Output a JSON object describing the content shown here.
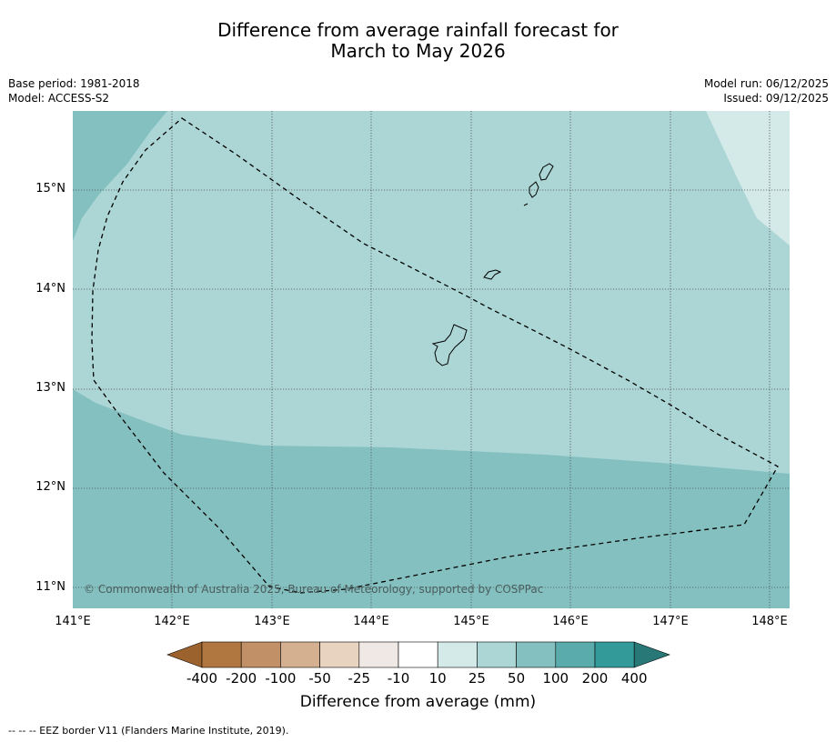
{
  "title_line1": "Difference from average rainfall forecast for",
  "title_line2": "March to May 2026",
  "base_period": "Base period: 1981-2018",
  "model": "Model: ACCESS-S2",
  "model_run": "Model run: 06/12/2025",
  "issued": "Issued: 09/12/2025",
  "lat_ticks": [
    "15°N",
    "14°N",
    "13°N",
    "12°N",
    "11°N"
  ],
  "lon_ticks": [
    "141°E",
    "142°E",
    "143°E",
    "144°E",
    "145°E",
    "146°E",
    "147°E",
    "148°E"
  ],
  "copyright": "© Commonwealth of Australia 2025, Bureau of Meteorology, supported by COSPPac",
  "colorbar": {
    "labels": [
      "-400",
      "-200",
      "-100",
      "-50",
      "-25",
      "-10",
      "10",
      "25",
      "50",
      "100",
      "200",
      "400"
    ],
    "colors": [
      "#9c622e",
      "#b07740",
      "#c19066",
      "#d4b090",
      "#e8d2c0",
      "#efe8e4",
      "#ffffff",
      "#d4eae9",
      "#acd6d5",
      "#85c0c0",
      "#5aacac",
      "#339a99",
      "#287877"
    ],
    "title": "Difference from average (mm)"
  },
  "footnote": "--  --  -- EEZ border V11 (Flanders Marine Institute, 2019)."
}
